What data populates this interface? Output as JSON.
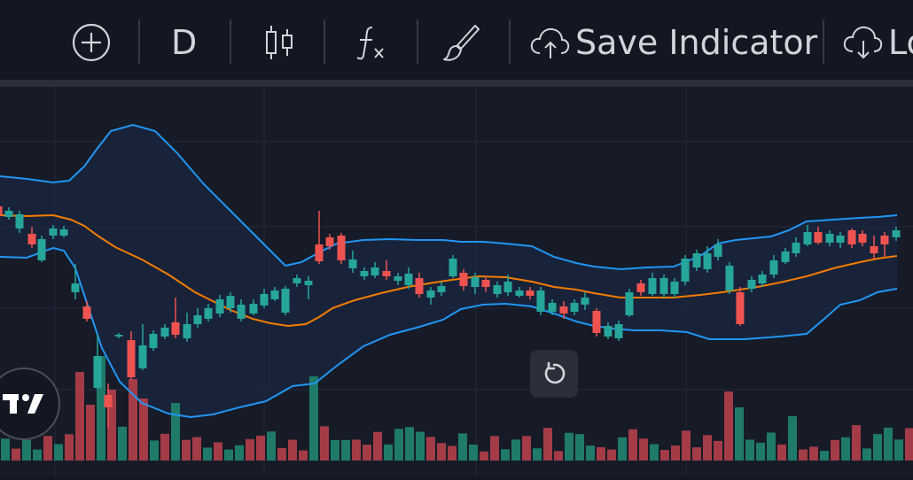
{
  "toolbar": {
    "add_icon": "plus-circle",
    "interval_label": "D",
    "chart_type_icon": "candlestick",
    "indicators_icon": "fx",
    "drawing_icon": "brush",
    "save_indicator_label": "Save Indicator",
    "load_label_partial": "Lo"
  },
  "chart_data": {
    "type": "candlestick",
    "overlays": [
      "bollinger-bands-upper",
      "bollinger-bands-middle",
      "bollinger-bands-lower"
    ],
    "candles_up_color": "#26a69a",
    "candles_down_color": "#ef5350",
    "band_color": "#2196f3",
    "middle_color": "#f57c00",
    "volume_up_color": "#1f7a6a",
    "volume_down_color": "#a33c47"
  },
  "controls": {
    "reset_icon": "rotate-ccw"
  },
  "branding": {
    "logo": "tradingview-logo"
  }
}
